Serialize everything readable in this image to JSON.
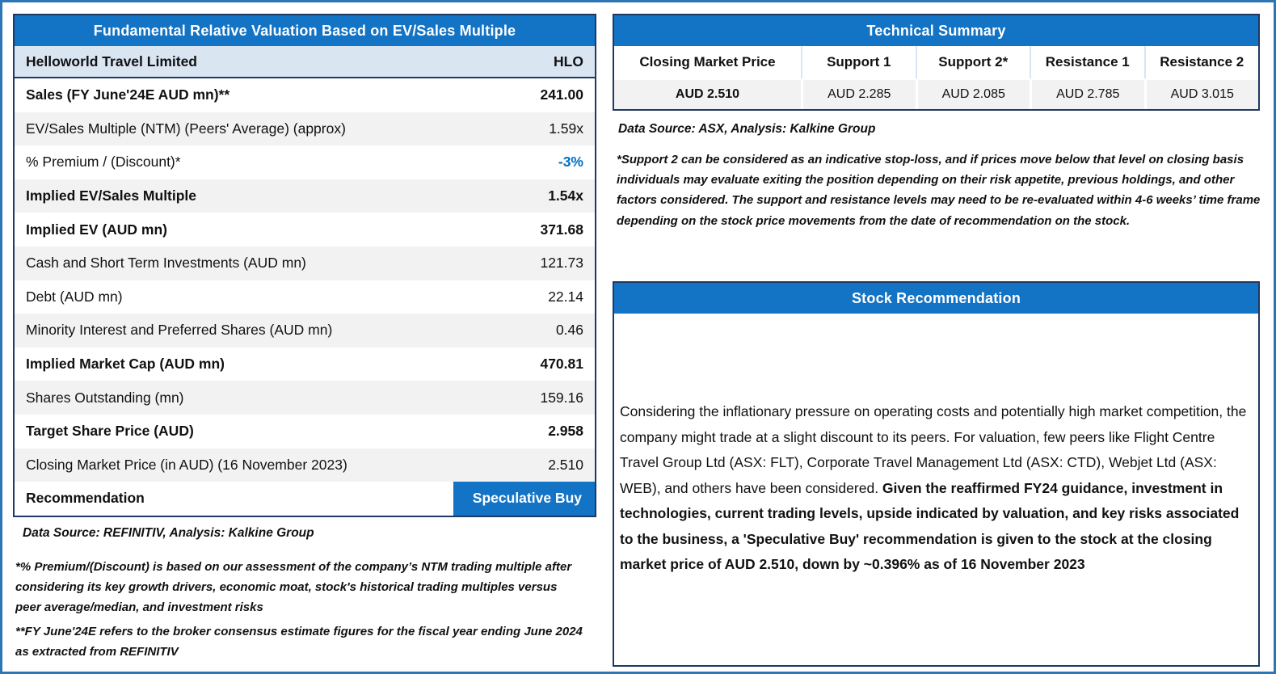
{
  "colors": {
    "header_blue": "#1373C5",
    "accent_blue": "#0070C0",
    "panel_border": "#1F3864",
    "outer_border": "#2E75B6",
    "header_row_bg": "#DAE5F2",
    "stripe_gray": "#F2F2F2"
  },
  "fundamental": {
    "title": "Fundamental Relative Valuation Based on EV/Sales Multiple",
    "company": "Helloworld Travel Limited",
    "ticker": "HLO",
    "rows": [
      {
        "label": "Sales (FY June'24E AUD mn)**",
        "value": "241.00"
      },
      {
        "label": "EV/Sales Multiple (NTM)  (Peers' Average) (approx)",
        "value": "1.59x"
      },
      {
        "label": "% Premium / (Discount)*",
        "value": "-3%"
      },
      {
        "label": "Implied EV/Sales Multiple",
        "value": "1.54x"
      },
      {
        "label": "Implied EV (AUD mn)",
        "value": "371.68"
      },
      {
        "label": "Cash and Short Term Investments (AUD mn)",
        "value": "121.73"
      },
      {
        "label": "Debt (AUD mn)",
        "value": "22.14"
      },
      {
        "label": "Minority Interest and Preferred Shares (AUD mn)",
        "value": "0.46"
      },
      {
        "label": "Implied Market Cap (AUD mn)",
        "value": "470.81"
      },
      {
        "label": "Shares Outstanding (mn)",
        "value": "159.16"
      },
      {
        "label": "Target Share Price (AUD)",
        "value": "2.958"
      },
      {
        "label": "Closing Market Price (in AUD) (16 November 2023)",
        "value": "2.510"
      },
      {
        "label": "Recommendation",
        "value": "Speculative Buy"
      }
    ],
    "source": "Data Source: REFINITIV, Analysis: Kalkine Group",
    "footnote1": "*% Premium/(Discount) is based on our assessment of the company’s NTM trading multiple after considering its key growth drivers, economic moat, stock's historical trading multiples versus peer average/median, and investment risks",
    "footnote2": "**FY June'24E refers to the broker consensus estimate figures for the fiscal year ending June 2024  as extracted from REFINITIV"
  },
  "technical": {
    "title": "Technical Summary",
    "columns": [
      "Closing Market Price",
      "Support 1",
      "Support 2*",
      "Resistance 1",
      "Resistance 2"
    ],
    "values": [
      "AUD 2.510",
      "AUD 2.285",
      "AUD 2.085",
      "AUD 2.785",
      "AUD 3.015"
    ],
    "source": "Data Source: ASX, Analysis: Kalkine Group",
    "footnote": "*Support 2 can be considered as an indicative stop-loss, and if prices move below that level on closing basis individuals may evaluate exiting the position depending on their risk appetite, previous holdings, and other factors considered. The support and resistance levels may need to be re-evaluated within 4-6 weeks’ time frame depending on the stock price movements from the date of recommendation on the stock."
  },
  "recommendation": {
    "title": "Stock Recommendation",
    "text_normal": "Considering the inflationary pressure on operating costs and potentially high market competition, the company might trade at a slight discount to its peers. For valuation, few peers like Flight Centre Travel Group Ltd (ASX: FLT), Corporate Travel Management Ltd (ASX: CTD), Webjet Ltd (ASX: WEB), and others have been considered. ",
    "text_bold": "Given the reaffirmed FY24 guidance, investment in technologies, current trading levels, upside indicated by valuation, and key risks associated to the business, a 'Speculative Buy' recommendation is given to the stock at the closing market price of AUD 2.510, down by ~0.396% as of 16 November 2023"
  }
}
